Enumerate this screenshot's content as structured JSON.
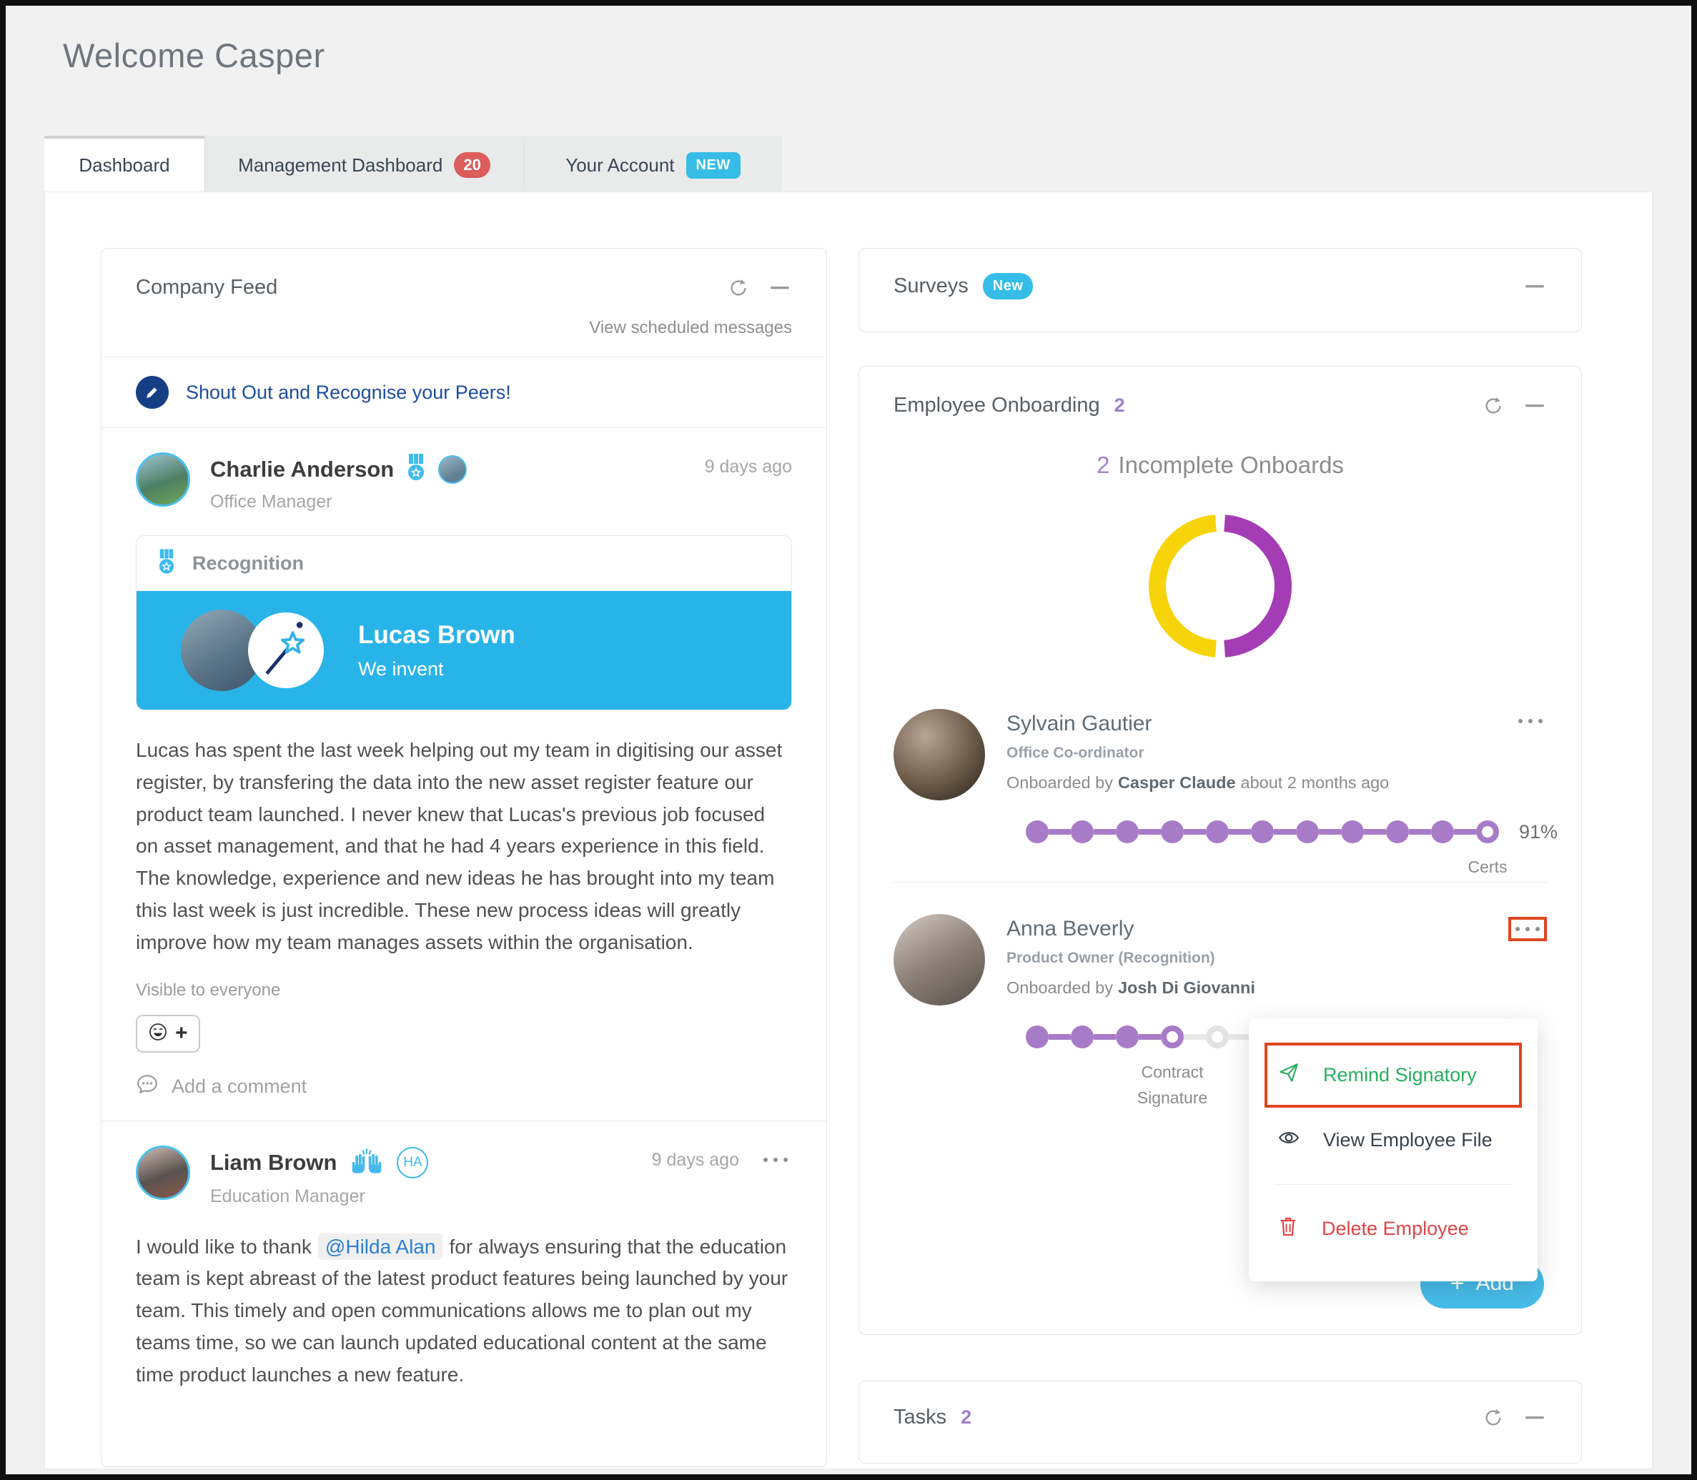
{
  "page": {
    "title": "Welcome Casper"
  },
  "tabs": [
    {
      "label": "Dashboard"
    },
    {
      "label": "Management Dashboard",
      "badge": "20"
    },
    {
      "label": "Your Account",
      "badge": "NEW"
    }
  ],
  "company_feed": {
    "title": "Company Feed",
    "view_scheduled": "View scheduled messages",
    "shoutout": "Shout Out and Recognise your Peers!",
    "post1": {
      "author": "Charlie Anderson",
      "role": "Office Manager",
      "time": "9 days ago",
      "card_label": "Recognition",
      "recipient": "Lucas Brown",
      "company_value": "We invent",
      "body": "Lucas has spent the last week helping out my team in digitising our asset register, by transfering the data into the new asset register feature our product team launched. I never knew that Lucas's previous job focused on asset management, and that he had 4 years experience in this field. The knowledge, experience and new ideas he has brought into my team this last week is just incredible. These new process ideas will greatly improve how my team manages assets within the organisation.",
      "visibility": "Visible to everyone",
      "add_comment": "Add a comment"
    },
    "post2": {
      "author": "Liam Brown",
      "role": "Education Manager",
      "time": "9 days ago",
      "badge": "HA",
      "body_before": "I would like to thank",
      "mention": "@Hilda Alan",
      "body_after": "for always ensuring that the education team is kept abreast of the latest product features being launched by your team. This timely and open communications allows me to plan out my teams time, so we can launch updated educational content at the same time product launches a new feature."
    }
  },
  "surveys": {
    "title": "Surveys",
    "badge": "New"
  },
  "onboarding": {
    "title": "Employee Onboarding",
    "count": "2",
    "subtitle_count": "2",
    "subtitle": "Incomplete Onboards",
    "chart_data": {
      "type": "donut",
      "values": [
        1,
        1
      ],
      "colors": [
        "#a43cb5",
        "#f7d40a"
      ],
      "title": "2 Incomplete Onboards"
    },
    "employees": [
      {
        "name": "Sylvain Gautier",
        "role": "Office Co-ordinator",
        "onboarded_prefix": "Onboarded by",
        "onboarded_by": "Casper Claude",
        "onboarded_suffix": "about 2 months ago",
        "pct": "91%",
        "step_label": "Certs",
        "dots": {
          "total": 11,
          "filled": 10,
          "current": 10
        }
      },
      {
        "name": "Anna Beverly",
        "role": "Product Owner (Recognition)",
        "onboarded_prefix": "Onboarded by",
        "onboarded_by": "Josh Di Giovanni",
        "onboarded_suffix": "",
        "step_label": "Contract Signature",
        "dots": {
          "total": 11,
          "filled": 3,
          "current": 3
        }
      }
    ],
    "menu": {
      "items": [
        {
          "label": "Remind Signatory"
        },
        {
          "label": "View Employee File"
        },
        {
          "label": "Delete Employee"
        }
      ]
    },
    "add_label": "Add"
  },
  "tasks": {
    "title": "Tasks",
    "count": "2"
  },
  "colors": {
    "accent_blue": "#29b4e9",
    "navy": "#1d4d9e",
    "progress_purple": "#a87bc8",
    "donut_purple": "#a43cb5",
    "donut_yellow": "#f7d40a",
    "badge_red": "#dd5c5c",
    "annotation_red": "#e0451f",
    "menu_green": "#27ae60",
    "menu_red": "#e04545"
  }
}
